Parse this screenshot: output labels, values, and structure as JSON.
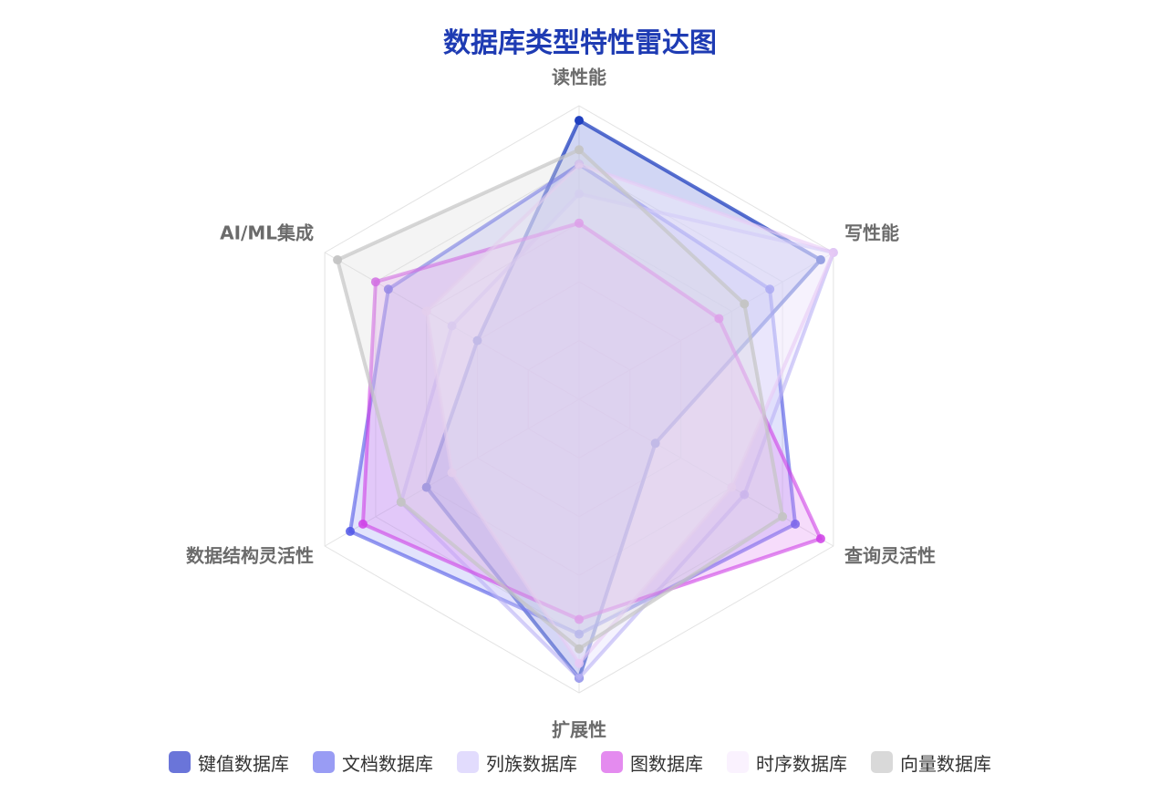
{
  "chart_data": {
    "type": "radar",
    "title": "数据库类型特性雷达图",
    "axes": [
      "读性能",
      "写性能",
      "查询灵活性",
      "扩展性",
      "数据结构灵活性",
      "AI/ML集成"
    ],
    "range": [
      0,
      10
    ],
    "grid": true,
    "legend_position": "bottom",
    "series": [
      {
        "name": "键值数据库",
        "values": [
          9.5,
          9.5,
          3.0,
          9.5,
          6.0,
          4.0
        ],
        "color": "#1f3fbf",
        "fill": "#5a6dd6",
        "fill_opacity": 0.28,
        "line_opacity": 0.75
      },
      {
        "name": "文档数据库",
        "values": [
          8.0,
          7.5,
          8.5,
          8.0,
          9.0,
          7.5
        ],
        "color": "#4f55e6",
        "fill": "#8a8ef2",
        "fill_opacity": 0.25,
        "line_opacity": 0.6
      },
      {
        "name": "列族数据库",
        "values": [
          7.0,
          10.0,
          6.5,
          9.5,
          7.0,
          5.0
        ],
        "color": "#b9b1f5",
        "fill": "#ddd6fb",
        "fill_opacity": 0.3,
        "line_opacity": 0.6
      },
      {
        "name": "图数据库",
        "values": [
          6.0,
          5.5,
          9.5,
          7.5,
          8.5,
          8.0
        ],
        "color": "#cf3fe6",
        "fill": "#e08cf2",
        "fill_opacity": 0.3,
        "line_opacity": 0.6
      },
      {
        "name": "时序数据库",
        "values": [
          8.0,
          10.0,
          6.0,
          9.0,
          5.0,
          6.0
        ],
        "color": "#e8c9f5",
        "fill": "#f8f0fd",
        "fill_opacity": 0.4,
        "line_opacity": 0.6
      },
      {
        "name": "向量数据库",
        "values": [
          8.5,
          6.5,
          8.0,
          8.5,
          7.0,
          9.5
        ],
        "color": "#c4c4c4",
        "fill": "#d9d9d9",
        "fill_opacity": 0.3,
        "line_opacity": 0.7
      }
    ]
  },
  "legend": {
    "items": [
      {
        "label": "键值数据库",
        "color": "#6a75d9"
      },
      {
        "label": "文档数据库",
        "color": "#999cf4"
      },
      {
        "label": "列族数据库",
        "color": "#e2dcfd"
      },
      {
        "label": "图数据库",
        "color": "#e48bef"
      },
      {
        "label": "时序数据库",
        "color": "#faf2fe"
      },
      {
        "label": "向量数据库",
        "color": "#d9d9d9"
      }
    ]
  }
}
